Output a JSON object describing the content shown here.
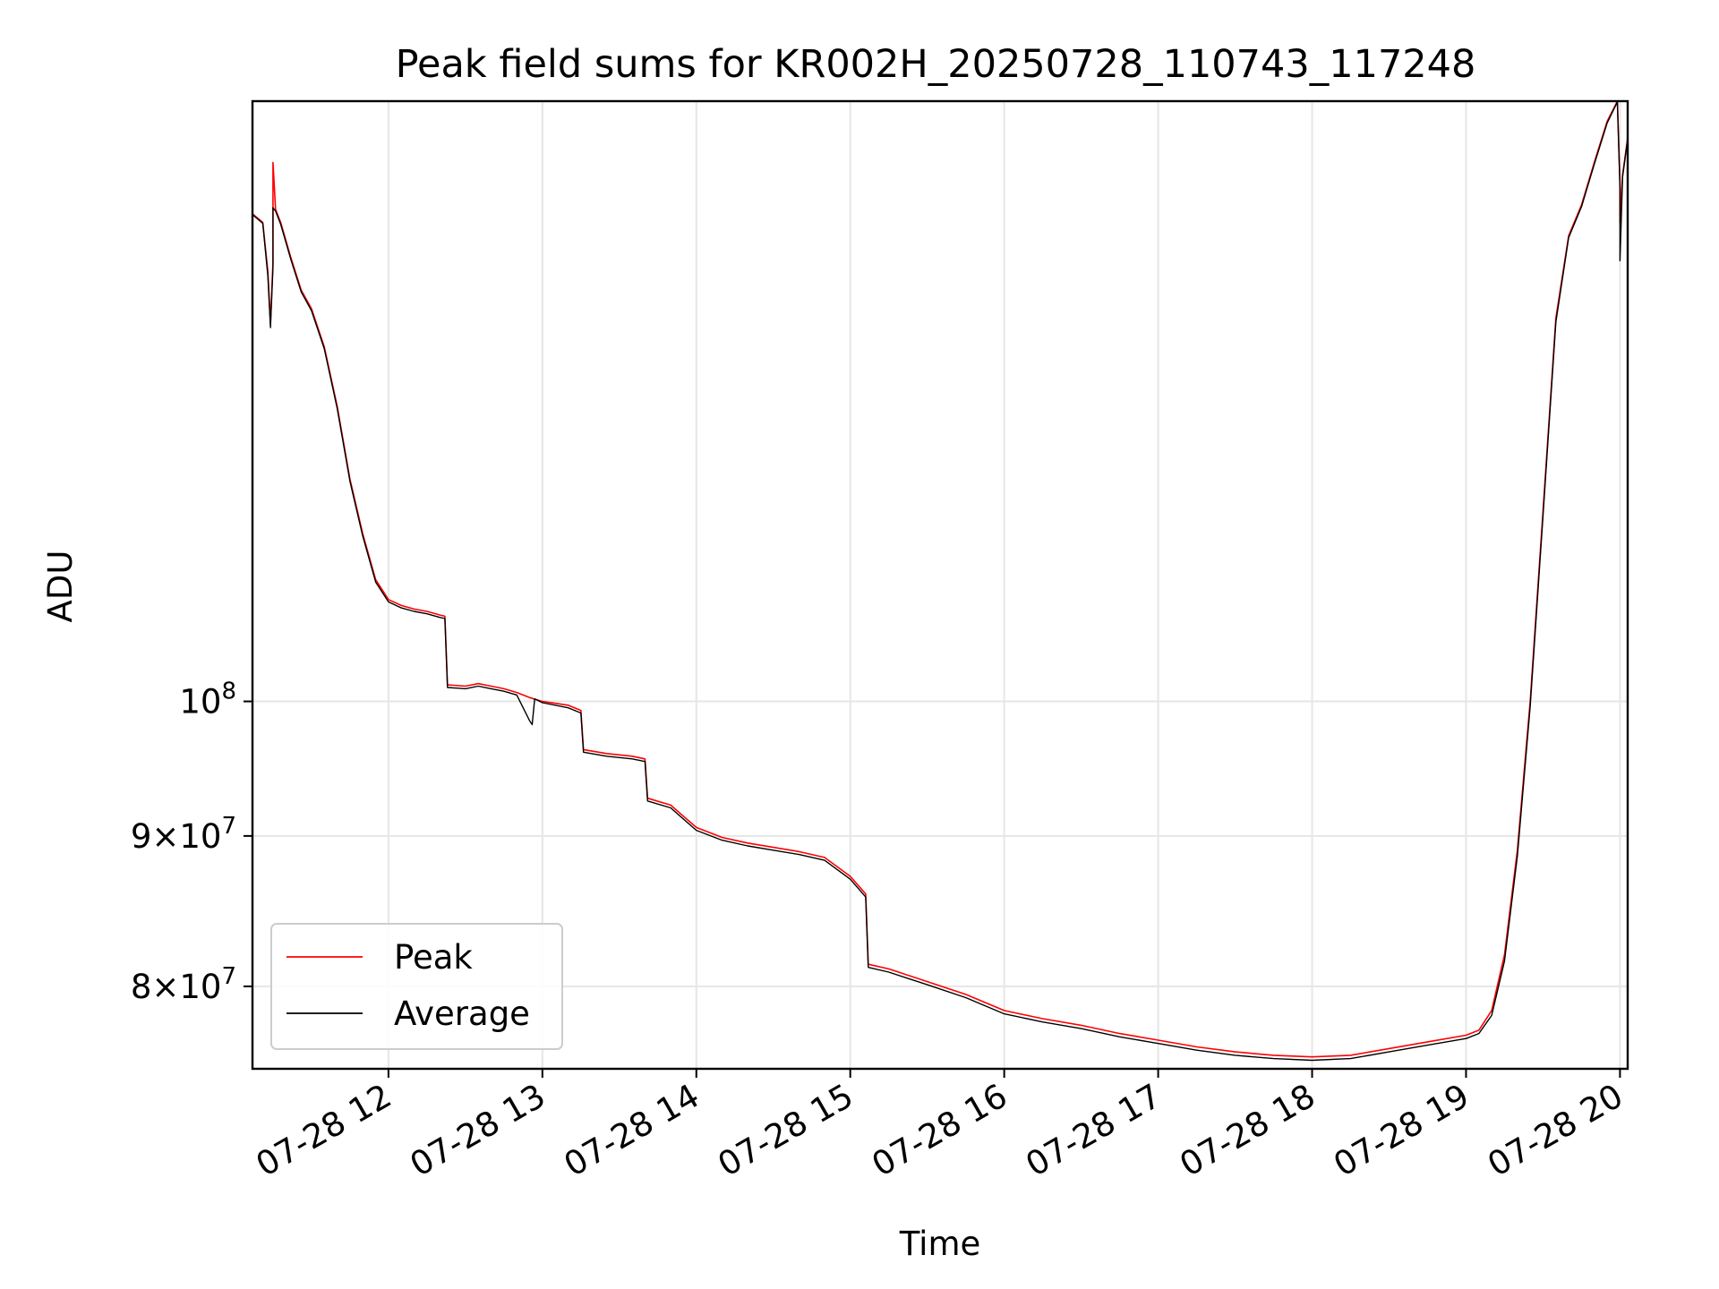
{
  "chart_data": {
    "type": "line",
    "title": "Peak field sums for KR002H_20250728_110743_117248",
    "xlabel": "Time",
    "ylabel": "ADU",
    "x_tick_labels": [
      "07-28 12",
      "07-28 13",
      "07-28 14",
      "07-28 15",
      "07-28 16",
      "07-28 17",
      "07-28 18",
      "07-28 19",
      "07-28 20"
    ],
    "x_ticks": [
      "2025-07-28T12:00",
      "2025-07-28T13:00",
      "2025-07-28T14:00",
      "2025-07-28T15:00",
      "2025-07-28T16:00",
      "2025-07-28T17:00",
      "2025-07-28T18:00",
      "2025-07-28T19:00",
      "2025-07-28T20:00"
    ],
    "xlim": [
      "2025-07-28T11:07",
      "2025-07-28T20:03"
    ],
    "y_scale": "log",
    "ylim": [
      75000000,
      160000000
    ],
    "y_ticks": [
      {
        "value": 80000000,
        "mantissa": "8",
        "base": "10",
        "exp": "7"
      },
      {
        "value": 90000000,
        "mantissa": "9",
        "base": "10",
        "exp": "7"
      },
      {
        "value": 100000000,
        "mantissa": "",
        "base": "10",
        "exp": "8"
      }
    ],
    "grid": true,
    "legend_position": "lower-left",
    "series": [
      {
        "name": "Peak",
        "color": "#ff0000",
        "points": [
          [
            "2025-07-28T11:07",
            146500000
          ],
          [
            "2025-07-28T11:09",
            146000000
          ],
          [
            "2025-07-28T11:11",
            145500000
          ],
          [
            "2025-07-28T11:13",
            140000000
          ],
          [
            "2025-07-28T11:14",
            134500000
          ],
          [
            "2025-07-28T11:15",
            141000000
          ],
          [
            "2025-07-28T11:15",
            152500000
          ],
          [
            "2025-07-28T11:16",
            147000000
          ],
          [
            "2025-07-28T11:18",
            145500000
          ],
          [
            "2025-07-28T11:22",
            141500000
          ],
          [
            "2025-07-28T11:26",
            138000000
          ],
          [
            "2025-07-28T11:30",
            136000000
          ],
          [
            "2025-07-28T11:35",
            132000000
          ],
          [
            "2025-07-28T11:40",
            126000000
          ],
          [
            "2025-07-28T11:45",
            119000000
          ],
          [
            "2025-07-28T11:50",
            114000000
          ],
          [
            "2025-07-28T11:55",
            110000000
          ],
          [
            "2025-07-28T12:00",
            108300000
          ],
          [
            "2025-07-28T12:05",
            107800000
          ],
          [
            "2025-07-28T12:10",
            107500000
          ],
          [
            "2025-07-28T12:15",
            107300000
          ],
          [
            "2025-07-28T12:20",
            107000000
          ],
          [
            "2025-07-28T12:22",
            106900000
          ],
          [
            "2025-07-28T12:23",
            101300000
          ],
          [
            "2025-07-28T12:30",
            101200000
          ],
          [
            "2025-07-28T12:35",
            101400000
          ],
          [
            "2025-07-28T12:40",
            101200000
          ],
          [
            "2025-07-28T12:45",
            101000000
          ],
          [
            "2025-07-28T12:50",
            100700000
          ],
          [
            "2025-07-28T12:55",
            100300000
          ],
          [
            "2025-07-28T13:00",
            100000000
          ],
          [
            "2025-07-28T13:10",
            99700000
          ],
          [
            "2025-07-28T13:15",
            99300000
          ],
          [
            "2025-07-28T13:16",
            96300000
          ],
          [
            "2025-07-28T13:25",
            96000000
          ],
          [
            "2025-07-28T13:35",
            95800000
          ],
          [
            "2025-07-28T13:40",
            95600000
          ],
          [
            "2025-07-28T13:41",
            92700000
          ],
          [
            "2025-07-28T13:50",
            92200000
          ],
          [
            "2025-07-28T14:00",
            90600000
          ],
          [
            "2025-07-28T14:10",
            89900000
          ],
          [
            "2025-07-28T14:20",
            89500000
          ],
          [
            "2025-07-28T14:30",
            89200000
          ],
          [
            "2025-07-28T14:40",
            88900000
          ],
          [
            "2025-07-28T14:50",
            88500000
          ],
          [
            "2025-07-28T15:00",
            87200000
          ],
          [
            "2025-07-28T15:06",
            86000000
          ],
          [
            "2025-07-28T15:07",
            81400000
          ],
          [
            "2025-07-28T15:15",
            81100000
          ],
          [
            "2025-07-28T15:30",
            80300000
          ],
          [
            "2025-07-28T15:45",
            79500000
          ],
          [
            "2025-07-28T16:00",
            78500000
          ],
          [
            "2025-07-28T16:15",
            78000000
          ],
          [
            "2025-07-28T16:30",
            77600000
          ],
          [
            "2025-07-28T16:45",
            77100000
          ],
          [
            "2025-07-28T17:00",
            76700000
          ],
          [
            "2025-07-28T17:15",
            76300000
          ],
          [
            "2025-07-28T17:30",
            76000000
          ],
          [
            "2025-07-28T17:45",
            75800000
          ],
          [
            "2025-07-28T18:00",
            75700000
          ],
          [
            "2025-07-28T18:15",
            75800000
          ],
          [
            "2025-07-28T18:30",
            76200000
          ],
          [
            "2025-07-28T18:45",
            76600000
          ],
          [
            "2025-07-28T19:00",
            77000000
          ],
          [
            "2025-07-28T19:05",
            77300000
          ],
          [
            "2025-07-28T19:10",
            78500000
          ],
          [
            "2025-07-28T19:15",
            82000000
          ],
          [
            "2025-07-28T19:20",
            89000000
          ],
          [
            "2025-07-28T19:25",
            100000000
          ],
          [
            "2025-07-28T19:30",
            116000000
          ],
          [
            "2025-07-28T19:35",
            135000000
          ],
          [
            "2025-07-28T19:40",
            144000000
          ],
          [
            "2025-07-28T19:45",
            147500000
          ],
          [
            "2025-07-28T19:50",
            152500000
          ],
          [
            "2025-07-28T19:55",
            157500000
          ],
          [
            "2025-07-28T19:59",
            160000000
          ],
          [
            "2025-07-28T20:00",
            150000000
          ],
          [
            "2025-07-28T20:00",
            145500000
          ],
          [
            "2025-07-28T20:01",
            151000000
          ],
          [
            "2025-07-28T20:03",
            155500000
          ]
        ]
      },
      {
        "name": "Average",
        "color": "#000000",
        "points": [
          [
            "2025-07-28T11:07",
            146400000
          ],
          [
            "2025-07-28T11:09",
            145900000
          ],
          [
            "2025-07-28T11:11",
            145400000
          ],
          [
            "2025-07-28T11:13",
            139500000
          ],
          [
            "2025-07-28T11:14",
            134000000
          ],
          [
            "2025-07-28T11:15",
            140500000
          ],
          [
            "2025-07-28T11:15",
            147200000
          ],
          [
            "2025-07-28T11:16",
            146800000
          ],
          [
            "2025-07-28T11:18",
            145300000
          ],
          [
            "2025-07-28T11:22",
            141300000
          ],
          [
            "2025-07-28T11:26",
            137800000
          ],
          [
            "2025-07-28T11:30",
            135800000
          ],
          [
            "2025-07-28T11:35",
            131800000
          ],
          [
            "2025-07-28T11:40",
            125800000
          ],
          [
            "2025-07-28T11:45",
            118800000
          ],
          [
            "2025-07-28T11:50",
            113800000
          ],
          [
            "2025-07-28T11:55",
            109800000
          ],
          [
            "2025-07-28T12:00",
            108100000
          ],
          [
            "2025-07-28T12:05",
            107600000
          ],
          [
            "2025-07-28T12:10",
            107300000
          ],
          [
            "2025-07-28T12:15",
            107100000
          ],
          [
            "2025-07-28T12:20",
            106800000
          ],
          [
            "2025-07-28T12:22",
            106700000
          ],
          [
            "2025-07-28T12:23",
            101100000
          ],
          [
            "2025-07-28T12:30",
            101000000
          ],
          [
            "2025-07-28T12:35",
            101200000
          ],
          [
            "2025-07-28T12:40",
            101000000
          ],
          [
            "2025-07-28T12:45",
            100800000
          ],
          [
            "2025-07-28T12:50",
            100500000
          ],
          [
            "2025-07-28T12:55",
            98500000
          ],
          [
            "2025-07-28T12:56",
            98200000
          ],
          [
            "2025-07-28T12:57",
            100200000
          ],
          [
            "2025-07-28T13:00",
            99900000
          ],
          [
            "2025-07-28T13:10",
            99500000
          ],
          [
            "2025-07-28T13:15",
            99100000
          ],
          [
            "2025-07-28T13:16",
            96100000
          ],
          [
            "2025-07-28T13:25",
            95800000
          ],
          [
            "2025-07-28T13:35",
            95600000
          ],
          [
            "2025-07-28T13:40",
            95400000
          ],
          [
            "2025-07-28T13:41",
            92500000
          ],
          [
            "2025-07-28T13:50",
            92000000
          ],
          [
            "2025-07-28T14:00",
            90400000
          ],
          [
            "2025-07-28T14:10",
            89700000
          ],
          [
            "2025-07-28T14:20",
            89300000
          ],
          [
            "2025-07-28T14:30",
            89000000
          ],
          [
            "2025-07-28T14:40",
            88700000
          ],
          [
            "2025-07-28T14:50",
            88300000
          ],
          [
            "2025-07-28T15:00",
            87000000
          ],
          [
            "2025-07-28T15:06",
            85800000
          ],
          [
            "2025-07-28T15:07",
            81200000
          ],
          [
            "2025-07-28T15:15",
            80900000
          ],
          [
            "2025-07-28T15:30",
            80100000
          ],
          [
            "2025-07-28T15:45",
            79300000
          ],
          [
            "2025-07-28T16:00",
            78300000
          ],
          [
            "2025-07-28T16:15",
            77800000
          ],
          [
            "2025-07-28T16:30",
            77400000
          ],
          [
            "2025-07-28T16:45",
            76900000
          ],
          [
            "2025-07-28T17:00",
            76500000
          ],
          [
            "2025-07-28T17:15",
            76100000
          ],
          [
            "2025-07-28T17:30",
            75800000
          ],
          [
            "2025-07-28T17:45",
            75600000
          ],
          [
            "2025-07-28T18:00",
            75500000
          ],
          [
            "2025-07-28T18:15",
            75600000
          ],
          [
            "2025-07-28T18:30",
            76000000
          ],
          [
            "2025-07-28T18:45",
            76400000
          ],
          [
            "2025-07-28T19:00",
            76800000
          ],
          [
            "2025-07-28T19:05",
            77100000
          ],
          [
            "2025-07-28T19:10",
            78200000
          ],
          [
            "2025-07-28T19:15",
            81600000
          ],
          [
            "2025-07-28T19:20",
            88600000
          ],
          [
            "2025-07-28T19:25",
            99600000
          ],
          [
            "2025-07-28T19:30",
            115600000
          ],
          [
            "2025-07-28T19:35",
            134600000
          ],
          [
            "2025-07-28T19:40",
            143800000
          ],
          [
            "2025-07-28T19:45",
            147300000
          ],
          [
            "2025-07-28T19:50",
            152300000
          ],
          [
            "2025-07-28T19:55",
            157300000
          ],
          [
            "2025-07-28T19:59",
            159900000
          ],
          [
            "2025-07-28T20:00",
            149500000
          ],
          [
            "2025-07-28T20:00",
            141200000
          ],
          [
            "2025-07-28T20:01",
            150800000
          ],
          [
            "2025-07-28T20:03",
            155300000
          ]
        ]
      }
    ]
  }
}
